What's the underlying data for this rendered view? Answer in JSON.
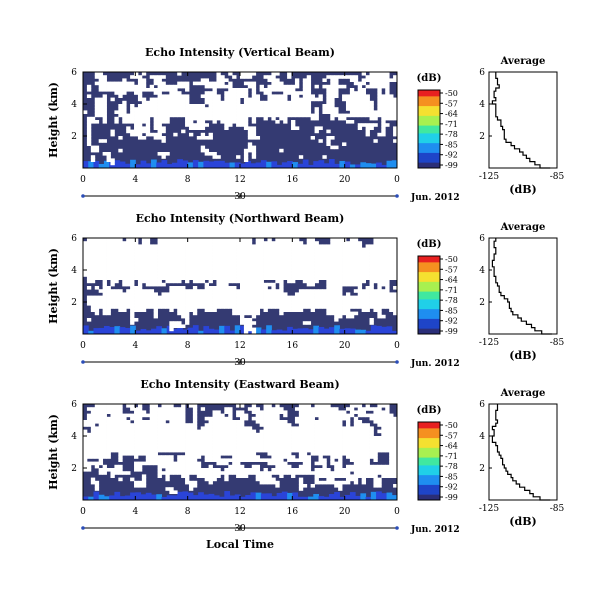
{
  "figure": {
    "xlabel": "Local Time",
    "colorbar_unit": "(dB)",
    "colorbar_ticks": [
      "-50",
      "-57",
      "-64",
      "-71",
      "-78",
      "-85",
      "-92",
      "-99"
    ],
    "colors": {
      "background_low": "#343a72",
      "no_data": "#ffffff",
      "surface_echo": "#2a44d8",
      "colormap": [
        "#2b2e78",
        "#1e45c8",
        "#1f8ef0",
        "#20d0e8",
        "#40e8a0",
        "#a8f050",
        "#f5e030",
        "#f59020",
        "#e82020"
      ]
    }
  },
  "chart_data": [
    {
      "type": "heatmap",
      "title": "Echo Intensity (Vertical Beam)",
      "ylabel": "Height (km)",
      "yticks": [
        "2",
        "4",
        "6"
      ],
      "ylim": [
        0,
        6
      ],
      "xticks": [
        "0",
        "4",
        "8",
        "12",
        "16",
        "20",
        "0"
      ],
      "xlim": [
        0,
        24
      ],
      "date_label": "Jun. 2012",
      "date_tick": "30",
      "value_range_dB": [
        -99,
        -50
      ],
      "noise_floor_dB": -99
    },
    {
      "type": "line",
      "title": "Average",
      "xlabel": "(dB)",
      "xticks": [
        "-125",
        "-85"
      ],
      "yticks": [
        "2",
        "4",
        "6"
      ],
      "xlim": [
        -125,
        -85
      ],
      "ylim": [
        0,
        6
      ],
      "height_km": [
        0.0,
        0.2,
        0.4,
        0.6,
        0.8,
        1.0,
        1.2,
        1.4,
        1.6,
        1.8,
        2.0,
        2.2,
        2.4,
        2.6,
        2.8,
        3.0,
        3.2,
        3.4,
        3.6,
        3.8,
        4.0,
        4.2,
        4.4,
        4.6,
        4.8,
        5.0,
        5.2,
        5.4,
        5.6,
        5.8,
        6.0
      ],
      "mean_dB": [
        -89,
        -95,
        -98,
        -101,
        -103,
        -105,
        -107,
        -110,
        -112,
        -115,
        -116,
        -116,
        -116,
        -117,
        -118,
        -118,
        -120,
        -121,
        -121,
        -121,
        -121,
        -123,
        -121,
        -122,
        -122,
        -121,
        -119,
        -120,
        -120,
        -121,
        -121
      ]
    },
    {
      "type": "heatmap",
      "title": "Echo Intensity (Northward Beam)",
      "ylabel": "Height (km)",
      "yticks": [
        "2",
        "4",
        "6"
      ],
      "ylim": [
        0,
        6
      ],
      "xticks": [
        "0",
        "4",
        "8",
        "12",
        "16",
        "20",
        "0"
      ],
      "xlim": [
        0,
        24
      ],
      "date_label": "Jun. 2012",
      "date_tick": "30",
      "value_range_dB": [
        -99,
        -50
      ],
      "noise_floor_dB": -99
    },
    {
      "type": "line",
      "title": "Average",
      "xlabel": "(dB)",
      "xticks": [
        "-125",
        "-85"
      ],
      "yticks": [
        "2",
        "4",
        "6"
      ],
      "xlim": [
        -125,
        -85
      ],
      "ylim": [
        0,
        6
      ],
      "height_km": [
        0.0,
        0.2,
        0.4,
        0.6,
        0.8,
        1.0,
        1.2,
        1.4,
        1.6,
        1.8,
        2.0,
        2.2,
        2.4,
        2.6,
        2.8,
        3.0,
        3.2,
        3.4,
        3.6,
        3.8,
        4.0,
        4.2,
        4.4,
        4.6,
        4.8,
        5.0,
        5.2,
        5.4,
        5.6,
        5.8,
        6.0
      ],
      "mean_dB": [
        -88,
        -94,
        -98,
        -100,
        -103,
        -106,
        -108,
        -111,
        -112,
        -113,
        -113,
        -114,
        -116,
        -118,
        -119,
        -119,
        -120,
        -121,
        -121,
        -122,
        -122,
        -122,
        -123,
        -123,
        -122,
        -122,
        -121,
        -121,
        -122,
        -122,
        -121
      ]
    },
    {
      "type": "heatmap",
      "title": "Echo Intensity (Eastward Beam)",
      "ylabel": "Height (km)",
      "yticks": [
        "2",
        "4",
        "6"
      ],
      "ylim": [
        0,
        6
      ],
      "xticks": [
        "0",
        "4",
        "8",
        "12",
        "16",
        "20",
        "0"
      ],
      "xlim": [
        0,
        24
      ],
      "date_label": "Jun. 2012",
      "date_tick": "30",
      "value_range_dB": [
        -99,
        -50
      ],
      "noise_floor_dB": -99
    },
    {
      "type": "line",
      "title": "Average",
      "xlabel": "(dB)",
      "xticks": [
        "-125",
        "-85"
      ],
      "yticks": [
        "2",
        "4",
        "6"
      ],
      "xlim": [
        -125,
        -85
      ],
      "ylim": [
        0,
        6
      ],
      "height_km": [
        0.0,
        0.2,
        0.4,
        0.6,
        0.8,
        1.0,
        1.2,
        1.4,
        1.6,
        1.8,
        2.0,
        2.2,
        2.4,
        2.6,
        2.8,
        3.0,
        3.2,
        3.4,
        3.6,
        3.8,
        4.0,
        4.2,
        4.4,
        4.6,
        4.8,
        5.0,
        5.2,
        5.4,
        5.6,
        5.8,
        6.0
      ],
      "mean_dB": [
        -89,
        -95,
        -99,
        -101,
        -104,
        -107,
        -109,
        -111,
        -112,
        -114,
        -115,
        -116,
        -117,
        -117,
        -118,
        -119,
        -120,
        -120,
        -121,
        -123,
        -123,
        -122,
        -122,
        -123,
        -121,
        -120,
        -121,
        -121,
        -121,
        -120,
        -120
      ]
    }
  ]
}
